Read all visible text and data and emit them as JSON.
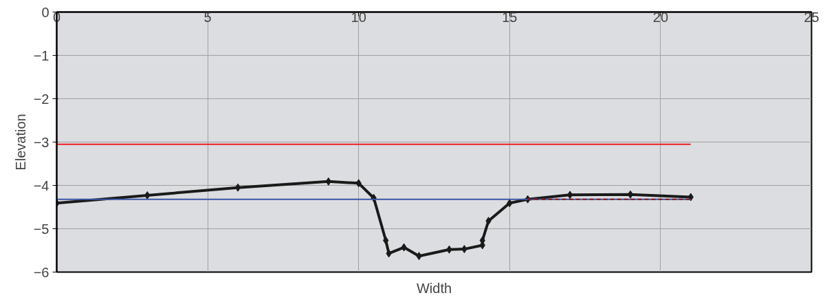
{
  "chart_data": {
    "type": "line",
    "xlabel": "Width",
    "ylabel": "Elevation",
    "xlim": [
      0,
      25
    ],
    "xticks": [
      0,
      5,
      10,
      15,
      20,
      25
    ],
    "ylim": [
      -6,
      0
    ],
    "yticks": [
      0,
      -1,
      -2,
      -3,
      -4,
      -5,
      -6
    ],
    "grid": true,
    "marker": "diamond",
    "line_style": "solid",
    "series": [
      {
        "color": "#1a1a1a",
        "x": [
          0,
          3,
          6,
          9,
          10,
          10.5,
          10.9,
          11.0,
          11.5,
          12.0,
          13.0,
          13.5,
          14.1,
          14.1,
          14.3,
          15.0,
          15.6,
          17,
          19,
          21
        ],
        "values": [
          -4.41,
          -4.23,
          -4.05,
          -3.91,
          -3.95,
          -4.29,
          -5.27,
          -5.57,
          -5.43,
          -5.63,
          -5.48,
          -5.47,
          -5.38,
          -5.27,
          -4.82,
          -4.41,
          -4.32,
          -4.22,
          -4.21,
          -4.27
        ]
      },
      {
        "type": "line",
        "marker": "none",
        "color": "#ee1c25",
        "x": [
          0,
          21
        ],
        "values": [
          -3.05,
          -3.05
        ]
      },
      {
        "type": "line",
        "marker": "none",
        "color": "#3a56a5",
        "x": [
          0,
          21
        ],
        "values": [
          -4.32,
          -4.32
        ]
      },
      {
        "type": "line",
        "marker": "none",
        "line_style": "dashed",
        "color": "#8b1a1a",
        "x": [
          15.6,
          21
        ],
        "values": [
          -4.32,
          -4.32
        ]
      }
    ]
  }
}
